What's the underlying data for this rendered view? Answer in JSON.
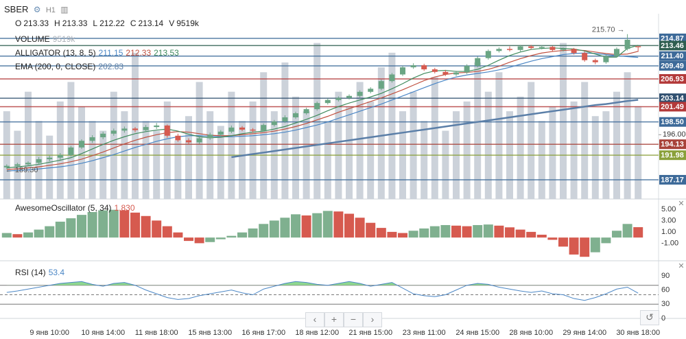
{
  "header": {
    "symbol": "SBER",
    "interval": "H1",
    "ohlcv": [
      {
        "label": "O",
        "value": "213.33"
      },
      {
        "label": "H",
        "value": "213.33"
      },
      {
        "label": "L",
        "value": "212.22"
      },
      {
        "label": "C",
        "value": "213.14"
      },
      {
        "label": "V",
        "value": "9519k"
      }
    ]
  },
  "chart_data": [
    {
      "type": "candlestick",
      "categories": [
        null,
        null,
        null,
        null,
        "9 янв 10:00",
        null,
        null,
        null,
        null,
        "10 янв 14:00",
        null,
        null,
        null,
        null,
        "11 янв 18:00",
        null,
        null,
        null,
        null,
        "15 янв 13:00",
        null,
        null,
        null,
        null,
        "16 янв 17:00",
        null,
        null,
        null,
        null,
        "18 янв 12:00",
        null,
        null,
        null,
        null,
        "21 янв 15:00",
        null,
        null,
        null,
        null,
        "23 янв 11:00",
        null,
        null,
        null,
        null,
        "24 янв 15:00",
        null,
        null,
        null,
        null,
        "28 янв 10:00",
        null,
        null,
        null,
        null,
        "29 янв 14:00",
        null,
        null,
        null,
        null,
        "30 янв 18:00"
      ],
      "candles": [
        [
          189.6,
          190.2,
          189.3,
          189.9
        ],
        [
          189.9,
          190.5,
          189.6,
          190.2
        ],
        [
          190.2,
          190.8,
          189.9,
          190.5
        ],
        [
          190.5,
          191.6,
          190.2,
          191.2
        ],
        [
          191.2,
          191.9,
          190.8,
          191.5
        ],
        [
          191.5,
          192.4,
          191.1,
          192.0
        ],
        [
          192.0,
          193.8,
          191.7,
          193.5
        ],
        [
          193.5,
          195.1,
          193.2,
          194.8
        ],
        [
          194.8,
          195.9,
          194.4,
          195.5
        ],
        [
          195.5,
          196.6,
          195.1,
          196.2
        ],
        [
          196.2,
          197.2,
          195.8,
          196.8
        ],
        [
          196.8,
          197.6,
          196.4,
          197.2
        ],
        [
          197.2,
          197.5,
          196.5,
          196.9
        ],
        [
          196.9,
          197.9,
          196.6,
          197.5
        ],
        [
          197.5,
          198.3,
          197.1,
          197.8
        ],
        [
          197.8,
          198.0,
          195.4,
          195.8
        ],
        [
          195.8,
          196.2,
          194.6,
          194.9
        ],
        [
          194.9,
          195.3,
          194.1,
          194.5
        ],
        [
          194.5,
          195.6,
          194.2,
          195.3
        ],
        [
          195.3,
          196.4,
          195.0,
          196.0
        ],
        [
          196.0,
          196.9,
          195.7,
          196.6
        ],
        [
          196.6,
          197.8,
          196.3,
          197.4
        ],
        [
          197.4,
          197.7,
          196.7,
          197.0
        ],
        [
          197.0,
          197.3,
          196.4,
          196.8
        ],
        [
          196.8,
          198.2,
          196.6,
          197.9
        ],
        [
          197.9,
          198.9,
          197.6,
          198.6
        ],
        [
          198.6,
          199.8,
          198.3,
          199.4
        ],
        [
          199.4,
          200.5,
          199.1,
          200.2
        ],
        [
          200.2,
          201.3,
          199.9,
          201.0
        ],
        [
          201.0,
          202.5,
          200.7,
          202.2
        ],
        [
          202.2,
          203.1,
          201.9,
          202.8
        ],
        [
          202.8,
          203.5,
          202.5,
          203.2
        ],
        [
          203.2,
          203.9,
          202.9,
          203.6
        ],
        [
          203.6,
          204.7,
          203.3,
          204.4
        ],
        [
          204.4,
          205.3,
          204.1,
          205.0
        ],
        [
          205.0,
          206.8,
          204.7,
          206.5
        ],
        [
          206.5,
          208.1,
          206.2,
          207.8
        ],
        [
          207.8,
          209.5,
          207.5,
          209.2
        ],
        [
          209.2,
          210.0,
          208.9,
          209.6
        ],
        [
          209.6,
          209.9,
          208.5,
          208.8
        ],
        [
          208.8,
          209.1,
          208.0,
          208.3
        ],
        [
          208.3,
          208.7,
          207.5,
          207.8
        ],
        [
          207.8,
          208.5,
          207.5,
          208.2
        ],
        [
          208.2,
          209.8,
          207.9,
          209.5
        ],
        [
          209.5,
          211.3,
          209.2,
          211.0
        ],
        [
          211.0,
          212.7,
          210.7,
          212.4
        ],
        [
          212.4,
          213.1,
          212.1,
          212.8
        ],
        [
          212.8,
          213.3,
          212.3,
          212.6
        ],
        [
          212.6,
          213.6,
          212.3,
          213.3
        ],
        [
          213.3,
          213.6,
          212.7,
          213.0
        ],
        [
          213.0,
          213.5,
          212.7,
          213.2
        ],
        [
          213.2,
          213.4,
          212.3,
          212.6
        ],
        [
          212.6,
          213.1,
          212.3,
          212.8
        ],
        [
          212.8,
          213.0,
          211.7,
          212.0
        ],
        [
          212.0,
          212.3,
          210.3,
          210.6
        ],
        [
          210.6,
          210.9,
          209.8,
          210.2
        ],
        [
          210.2,
          211.7,
          209.9,
          211.4
        ],
        [
          211.4,
          213.1,
          211.1,
          212.8
        ],
        [
          212.8,
          215.7,
          212.5,
          214.6
        ],
        [
          213.33,
          213.33,
          212.22,
          213.14
        ]
      ],
      "up_color": "#6aa584",
      "down_color": "#d65a4f",
      "ylim": [
        183.4,
        219.7
      ],
      "yticks": [
        {
          "value": 196,
          "label": "196.00"
        }
      ],
      "price_levels": [
        {
          "value": 214.87,
          "label": "214.87",
          "color": "#3d6a99"
        },
        {
          "value": 213.46,
          "label": "213.46",
          "color": "#2f5e50"
        },
        {
          "value": 211.4,
          "label": "211.40",
          "color": "#3d6a99"
        },
        {
          "value": 209.49,
          "label": "209.49",
          "color": "#3d6a99"
        },
        {
          "value": 206.93,
          "label": "206.93",
          "color": "#b33a3a"
        },
        {
          "value": 203.14,
          "label": "203.14",
          "color": "#2f4f6f"
        },
        {
          "value": 201.49,
          "label": "201.49",
          "color": "#b33a3a"
        },
        {
          "value": 198.5,
          "label": "198.50",
          "color": "#3d6a99"
        },
        {
          "value": 194.13,
          "label": "194.13",
          "color": "#a8433a"
        },
        {
          "value": 191.98,
          "label": "191.98",
          "color": "#8aa03a"
        },
        {
          "value": 187.17,
          "label": "187.17",
          "color": "#3d6a99"
        }
      ],
      "high_label": "215.70 →",
      "low_label": "← 189.30",
      "volume": {
        "name": "VOLUME",
        "value_label": "9519k",
        "color": "#ccd2da",
        "ylim": [
          0,
          19000
        ],
        "values": [
          9000,
          7000,
          11000,
          8000,
          6500,
          10000,
          12000,
          9500,
          8000,
          7000,
          11000,
          9000,
          15000,
          8000,
          7000,
          10000,
          6000,
          8500,
          12000,
          9000,
          7500,
          11000,
          8000,
          10000,
          13000,
          9000,
          14000,
          10500,
          9000,
          16000,
          8000,
          11000,
          9500,
          12000,
          10000,
          13500,
          15000,
          9000,
          11000,
          8000,
          12500,
          7000,
          9000,
          10000,
          14000,
          11000,
          13000,
          9000,
          10500,
          12000,
          8000,
          9500,
          16000,
          10000,
          12000,
          8500,
          9000,
          11000,
          13000,
          9519
        ]
      },
      "indicators": [
        {
          "name": "ALLIGATOR (13, 8, 5)",
          "series": [
            {
              "color": "#4a86c5",
              "values": [
                188.9,
                189.0,
                189.1,
                189.3,
                189.5,
                189.7,
                190.0,
                190.4,
                190.9,
                191.5,
                192.1,
                192.8,
                193.5,
                194.1,
                194.7,
                195.2,
                195.6,
                195.8,
                195.8,
                195.7,
                195.6,
                195.6,
                195.7,
                195.8,
                196.0,
                196.2,
                196.5,
                196.9,
                197.4,
                197.9,
                198.5,
                199.2,
                199.9,
                200.6,
                201.3,
                202.0,
                202.8,
                203.6,
                204.4,
                205.2,
                206.0,
                206.7,
                207.3,
                207.7,
                208.0,
                208.3,
                208.7,
                209.2,
                209.8,
                210.4,
                210.9,
                211.3,
                211.7,
                211.9,
                212.0,
                211.9,
                211.7,
                211.5,
                211.3,
                211.15
              ]
            },
            {
              "color": "#c0503f",
              "values": [
                189.2,
                189.3,
                189.5,
                189.7,
                190.0,
                190.3,
                190.7,
                191.2,
                191.9,
                192.6,
                193.4,
                194.2,
                194.9,
                195.5,
                196.0,
                196.4,
                196.6,
                196.5,
                196.2,
                195.9,
                195.8,
                195.8,
                196.0,
                196.2,
                196.4,
                196.7,
                197.1,
                197.6,
                198.2,
                198.9,
                199.6,
                200.4,
                201.1,
                201.8,
                202.5,
                203.2,
                204.0,
                204.8,
                205.7,
                206.6,
                207.3,
                207.8,
                208.1,
                208.2,
                208.4,
                208.8,
                209.4,
                210.2,
                210.9,
                211.5,
                212.0,
                212.3,
                212.5,
                212.6,
                212.5,
                212.2,
                211.9,
                211.7,
                211.8,
                212.33
              ]
            },
            {
              "color": "#3f8a5c",
              "values": [
                189.5,
                189.7,
                189.9,
                190.2,
                190.6,
                191.0,
                191.5,
                192.3,
                193.2,
                194.1,
                194.9,
                195.6,
                196.2,
                196.6,
                196.9,
                197.1,
                196.7,
                196.1,
                195.6,
                195.4,
                195.5,
                195.8,
                196.2,
                196.5,
                196.7,
                197.1,
                197.6,
                198.3,
                199.0,
                199.8,
                200.7,
                201.5,
                202.2,
                202.8,
                203.4,
                204.1,
                205.0,
                206.0,
                207.1,
                208.0,
                208.5,
                208.6,
                208.4,
                208.4,
                208.8,
                209.6,
                210.6,
                211.5,
                212.2,
                212.7,
                212.9,
                213.0,
                212.9,
                212.8,
                212.4,
                211.8,
                211.2,
                211.2,
                212.9,
                213.53
              ]
            }
          ]
        },
        {
          "name": "EMA (200, 0, CLOSE)",
          "series": [
            {
              "color": "#5b7fa8",
              "width": 2.5,
              "values": [
                null,
                null,
                null,
                null,
                null,
                null,
                null,
                null,
                null,
                null,
                null,
                null,
                null,
                null,
                null,
                null,
                null,
                null,
                null,
                null,
                null,
                191.6,
                191.9,
                192.2,
                192.5,
                192.8,
                193.1,
                193.4,
                193.7,
                194.0,
                194.3,
                194.6,
                194.9,
                195.2,
                195.5,
                195.8,
                196.1,
                196.4,
                196.7,
                197.0,
                197.3,
                197.6,
                197.9,
                198.2,
                198.5,
                198.8,
                199.1,
                199.4,
                199.7,
                200.0,
                200.3,
                200.6,
                200.9,
                201.2,
                201.5,
                201.8,
                202.0,
                202.3,
                202.6,
                202.83
              ]
            }
          ]
        }
      ]
    },
    {
      "type": "bar",
      "name": "AwesomeOscillator (5, 34)",
      "value_label": "1.830",
      "up_color": "#7fb08f",
      "down_color": "#d65a4f",
      "values": [
        0.8,
        0.6,
        0.9,
        1.4,
        2.0,
        2.8,
        3.4,
        4.0,
        4.5,
        4.8,
        4.9,
        4.8,
        4.4,
        3.8,
        3.0,
        2.0,
        0.9,
        -0.6,
        -1.0,
        -0.8,
        -0.3,
        0.3,
        0.9,
        1.6,
        2.4,
        3.0,
        3.5,
        4.1,
        3.9,
        4.3,
        4.7,
        4.6,
        4.2,
        3.5,
        2.6,
        1.7,
        1.0,
        0.8,
        1.2,
        1.6,
        2.0,
        2.2,
        2.1,
        2.0,
        2.2,
        2.3,
        2.1,
        1.8,
        1.4,
        1.0,
        0.5,
        -0.4,
        -1.6,
        -3.0,
        -3.4,
        -2.6,
        -1.0,
        1.2,
        2.4,
        1.83
      ],
      "ylim": [
        -4.1,
        6.8
      ],
      "yticks": [
        {
          "value": 5,
          "label": "5.00"
        },
        {
          "value": 3,
          "label": "3.00"
        },
        {
          "value": 1,
          "label": "1.00"
        },
        {
          "value": -1,
          "label": "-1.00"
        }
      ]
    },
    {
      "type": "line",
      "name": "RSI (14)",
      "color": "#4a86c5",
      "fill_color": "#8fd88f",
      "values": [
        55,
        58,
        62,
        66,
        70,
        74,
        76,
        78,
        72,
        68,
        74,
        76,
        70,
        60,
        52,
        44,
        40,
        42,
        48,
        52,
        56,
        60,
        54,
        50,
        62,
        68,
        74,
        78,
        76,
        72,
        70,
        74,
        78,
        74,
        68,
        72,
        76,
        64,
        52,
        48,
        46,
        50,
        60,
        70,
        74,
        72,
        66,
        62,
        58,
        55,
        58,
        52,
        50,
        42,
        38,
        44,
        52,
        62,
        66,
        53.4
      ],
      "bands": [
        30,
        50,
        70
      ],
      "ylim": [
        0,
        116
      ],
      "yticks": [
        90,
        60,
        30,
        0
      ]
    }
  ]
}
